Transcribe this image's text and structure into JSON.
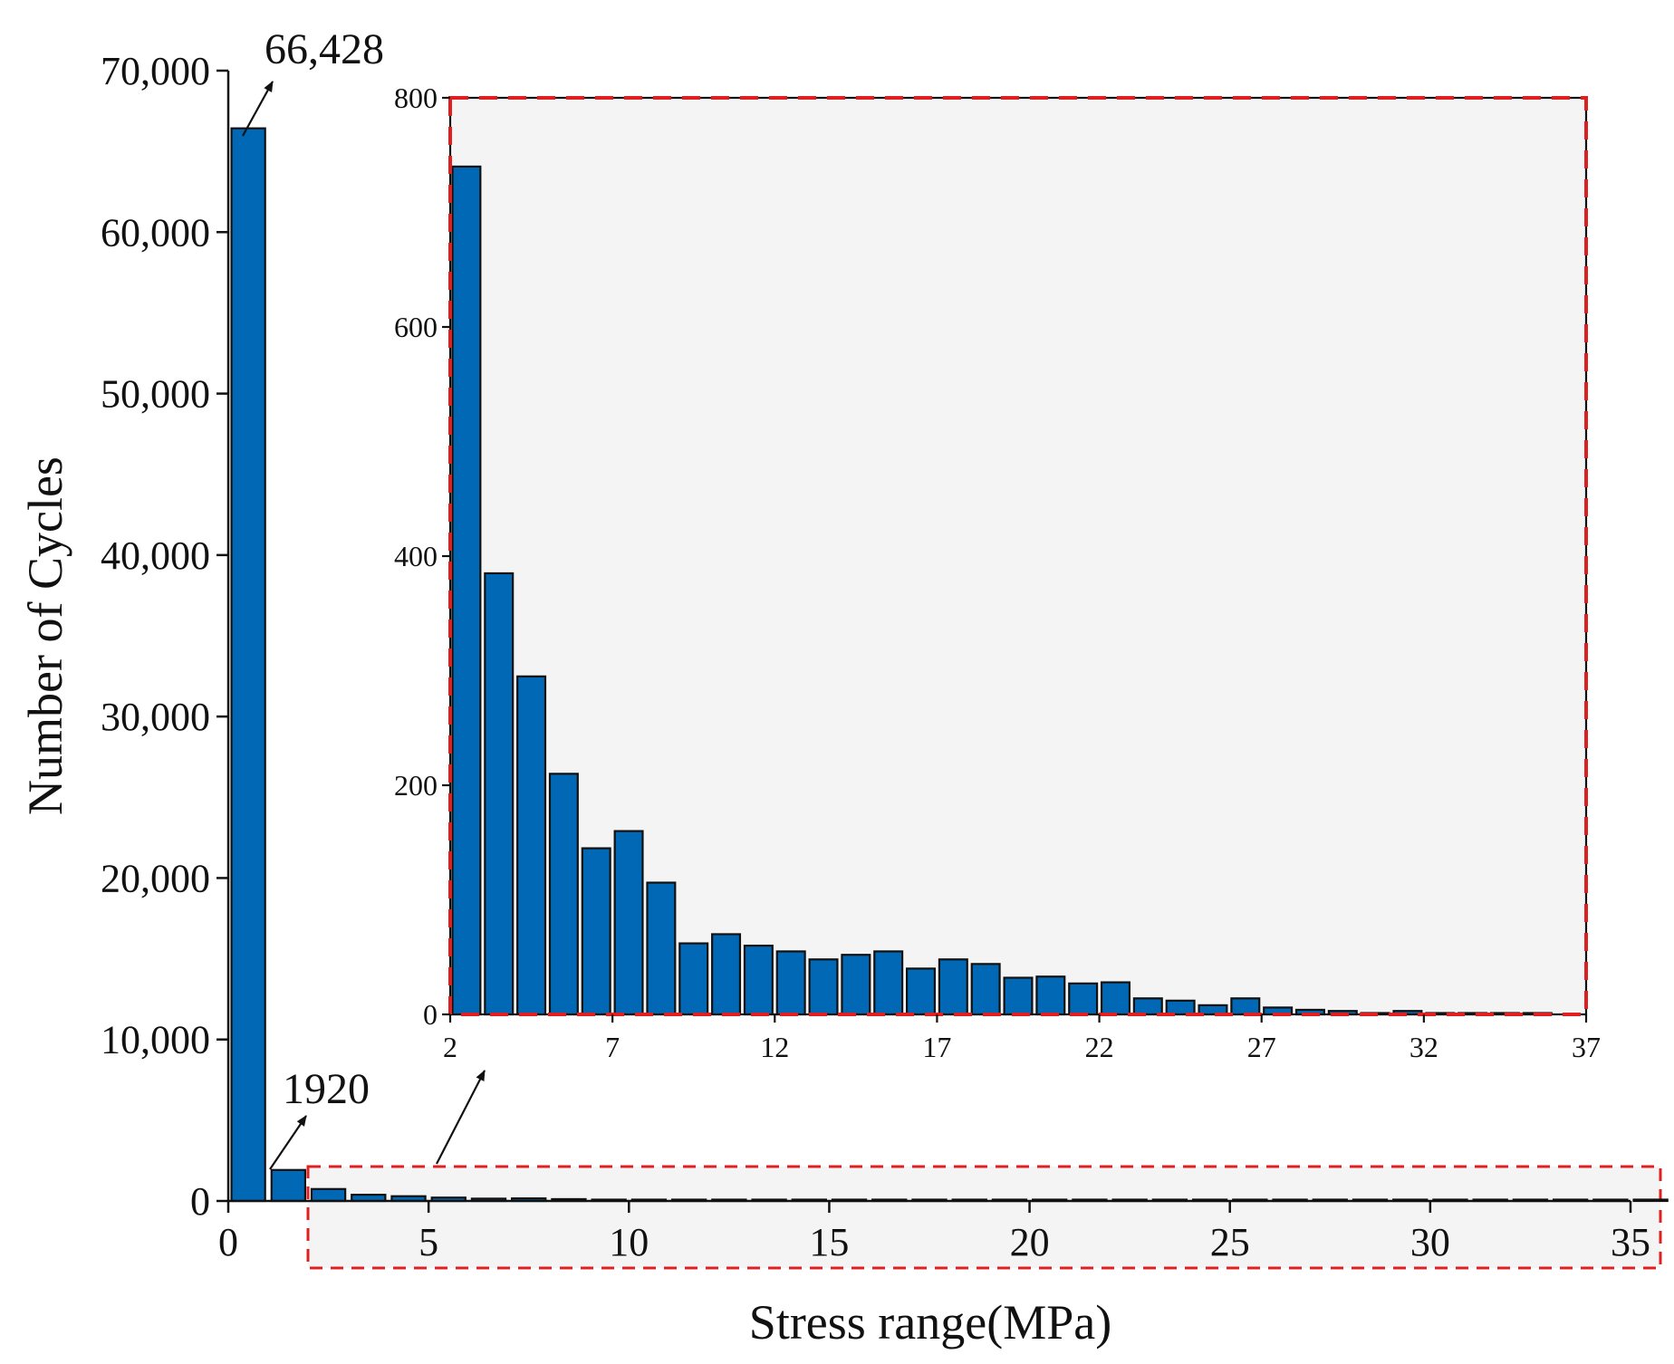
{
  "chart_data": [
    {
      "type": "bar",
      "role": "main",
      "xlabel": "Stress range(MPa)",
      "ylabel": "Number of Cycles",
      "xlim": [
        0,
        35
      ],
      "ylim": [
        0,
        70000
      ],
      "x_ticks": [
        0,
        5,
        10,
        15,
        20,
        25,
        30,
        35
      ],
      "x_tick_labels": [
        "0",
        "5",
        "10",
        "15",
        "20",
        "25",
        "30",
        "35"
      ],
      "y_ticks": [
        0,
        10000,
        20000,
        30000,
        40000,
        50000,
        60000,
        70000
      ],
      "y_tick_labels": [
        "0",
        "10,000",
        "20,000",
        "30,000",
        "40,000",
        "50,000",
        "60,000",
        "70,000"
      ],
      "bar_color": "#0068b5",
      "x": [
        0,
        1,
        2,
        3,
        4,
        5,
        6,
        7,
        8,
        9,
        10,
        11,
        12,
        13,
        14,
        15,
        16,
        17,
        18,
        19,
        20,
        21,
        22,
        23,
        24,
        25,
        26,
        27,
        28,
        29,
        30,
        31,
        32,
        33,
        34,
        35
      ],
      "values": [
        66428,
        1920,
        740,
        385,
        295,
        210,
        145,
        160,
        115,
        62,
        70,
        60,
        55,
        48,
        52,
        55,
        40,
        48,
        44,
        32,
        33,
        27,
        28,
        14,
        12,
        8,
        14,
        6,
        4,
        3,
        1,
        3,
        1,
        1,
        1,
        1
      ],
      "annotations": [
        {
          "text": "66,428",
          "x": 0
        },
        {
          "text": "1920",
          "x": 1
        }
      ],
      "highlight_box": {
        "x_from": 2,
        "x_to": 35,
        "style": "red-dashed"
      }
    },
    {
      "type": "bar",
      "role": "inset",
      "xlim": [
        2,
        37
      ],
      "ylim": [
        0,
        800
      ],
      "x_ticks": [
        2,
        7,
        12,
        17,
        22,
        27,
        32,
        37
      ],
      "x_tick_labels": [
        "2",
        "7",
        "12",
        "17",
        "22",
        "27",
        "32",
        "37"
      ],
      "y_ticks": [
        0,
        200,
        400,
        600,
        800
      ],
      "y_tick_labels": [
        "0",
        "200",
        "400",
        "600",
        "800"
      ],
      "background": "#f4f4f4",
      "border_color": "#e02020",
      "bar_color": "#0068b5",
      "x": [
        2,
        3,
        4,
        5,
        6,
        7,
        8,
        9,
        10,
        11,
        12,
        13,
        14,
        15,
        16,
        17,
        18,
        19,
        20,
        21,
        22,
        23,
        24,
        25,
        26,
        27,
        28,
        29,
        30,
        31,
        32,
        33,
        34,
        35
      ],
      "values": [
        740,
        385,
        295,
        210,
        145,
        160,
        115,
        62,
        70,
        60,
        55,
        48,
        52,
        55,
        40,
        48,
        44,
        32,
        33,
        27,
        28,
        14,
        12,
        8,
        14,
        6,
        4,
        3,
        1,
        3,
        1,
        1,
        1,
        1
      ]
    }
  ]
}
